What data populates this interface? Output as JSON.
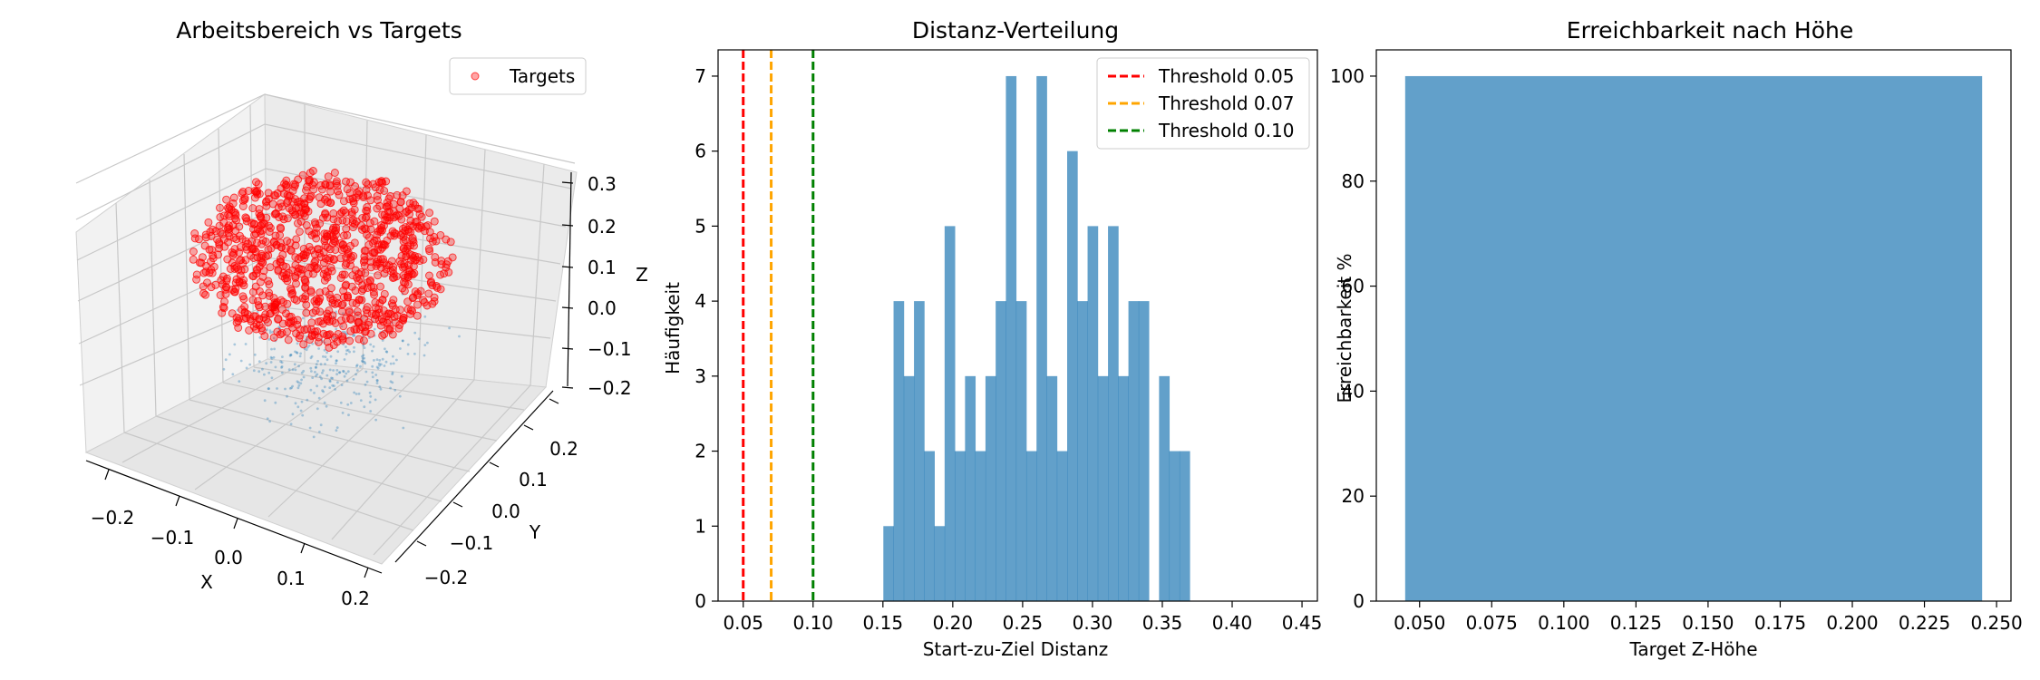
{
  "chart_data": [
    {
      "type": "scatter",
      "title": "Arbeitsbereich vs Targets",
      "xlabel": "X",
      "ylabel": "Y",
      "zlabel": "Z",
      "x_ticks": [
        "−0.2",
        "−0.1",
        "0.0",
        "0.1",
        "0.2"
      ],
      "y_ticks": [
        "−0.2",
        "−0.1",
        "0.0",
        "0.1",
        "0.2"
      ],
      "z_ticks": [
        "−0.2",
        "−0.1",
        "0.0",
        "0.1",
        "0.2",
        "0.3"
      ],
      "xlim": [
        -0.25,
        0.25
      ],
      "ylim": [
        -0.25,
        0.25
      ],
      "zlim": [
        -0.22,
        0.32
      ],
      "legend": {
        "entries": [
          "Targets"
        ],
        "placement": "upper right"
      },
      "series": [
        {
          "name": "Targets",
          "color": "#ff0000",
          "marker": "circle",
          "count_approx": 1000,
          "distribution": "roughly spherical cloud centered near (0, 0, 0.1), radius about 0.2"
        },
        {
          "color": "#1f77b4",
          "marker": "tiny dot",
          "count_approx": 300,
          "distribution": "sparse points below and around the targets"
        }
      ]
    },
    {
      "type": "bar",
      "subtype": "histogram",
      "title": "Distanz-Verteilung",
      "xlabel": "Start-zu-Ziel Distanz",
      "ylabel": "Häufigkeit",
      "x_ticks": [
        "0.05",
        "0.10",
        "0.15",
        "0.20",
        "0.25",
        "0.30",
        "0.35",
        "0.40",
        "0.45"
      ],
      "y_ticks": [
        "0",
        "1",
        "2",
        "3",
        "4",
        "5",
        "6",
        "7"
      ],
      "xlim": [
        0.032,
        0.461
      ],
      "ylim": [
        0,
        7.35
      ],
      "bar_color": "#1f77b4",
      "bin_start": 0.1503,
      "bin_width": 0.00731,
      "counts": [
        1,
        4,
        3,
        4,
        2,
        1,
        5,
        2,
        3,
        2,
        3,
        4,
        7,
        4,
        2,
        7,
        3,
        2,
        6,
        4,
        5,
        3,
        5,
        3,
        4,
        4,
        0,
        3,
        2,
        2
      ],
      "thresholds": [
        {
          "label": "Threshold 0.05",
          "value": 0.05,
          "color": "#ff0000"
        },
        {
          "label": "Threshold 0.07",
          "value": 0.07,
          "color": "#ffa500"
        },
        {
          "label": "Threshold 0.10",
          "value": 0.1,
          "color": "#008000"
        }
      ],
      "legend": {
        "placement": "upper right"
      }
    },
    {
      "type": "bar",
      "title": "Erreichbarkeit nach Höhe",
      "xlabel": "Target Z-Höhe",
      "ylabel": "Erreichbarkeit %",
      "x_ticks": [
        "0.050",
        "0.075",
        "0.100",
        "0.125",
        "0.150",
        "0.175",
        "0.200",
        "0.225",
        "0.250"
      ],
      "y_ticks": [
        "0",
        "20",
        "40",
        "60",
        "80",
        "100"
      ],
      "xlim": [
        0.035,
        0.255
      ],
      "ylim": [
        0,
        105
      ],
      "bar_color": "#1f77b4",
      "bars": [
        {
          "x_start": 0.045,
          "x_end": 0.245,
          "value": 100
        }
      ]
    }
  ]
}
